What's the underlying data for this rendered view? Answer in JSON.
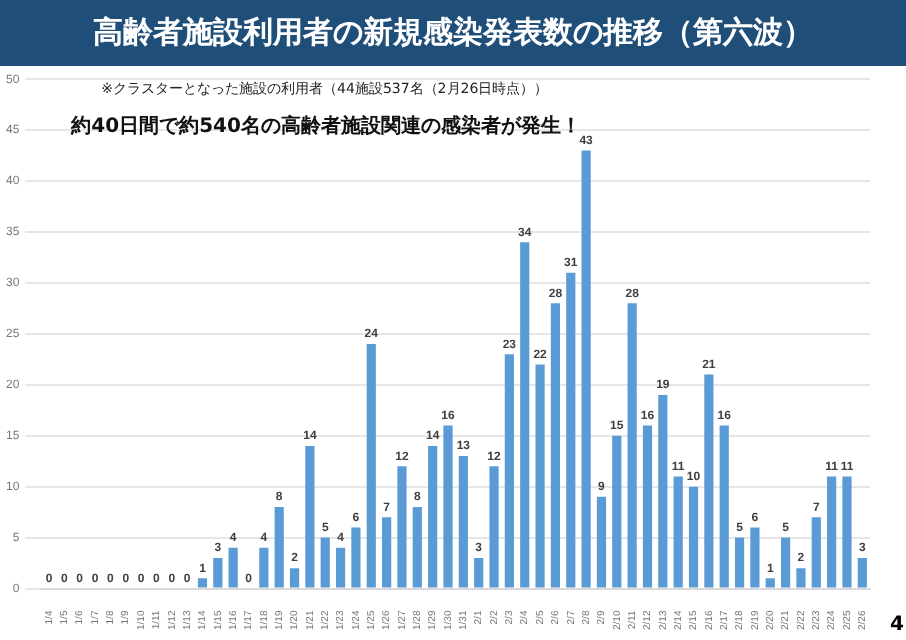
{
  "chart_data": {
    "type": "bar",
    "title": "高齢者施設利用者の新規感染発表数の推移（第六波）",
    "annotations": [
      "※クラスターとなった施設の利用者（44施設537名（2月26日時点））",
      "約40日間で約540名の高齢者施設関連の感染者が発生！",
      "4"
    ],
    "categories": [
      "1/4",
      "1/5",
      "1/6",
      "1/7",
      "1/8",
      "1/9",
      "1/10",
      "1/11",
      "1/12",
      "1/13",
      "1/14",
      "1/15",
      "1/16",
      "1/17",
      "1/18",
      "1/19",
      "1/20",
      "1/21",
      "1/22",
      "1/23",
      "1/24",
      "1/25",
      "1/26",
      "1/27",
      "1/28",
      "1/29",
      "1/30",
      "1/31",
      "2/1",
      "2/2",
      "2/3",
      "2/4",
      "2/5",
      "2/6",
      "2/7",
      "2/8",
      "2/9",
      "2/10",
      "2/11",
      "2/12",
      "2/13",
      "2/14",
      "2/15",
      "2/16",
      "2/17",
      "2/18",
      "2/19",
      "2/20",
      "2/21",
      "2/22",
      "2/23",
      "2/24",
      "2/25",
      "2/26"
    ],
    "values": [
      0,
      0,
      0,
      0,
      0,
      0,
      0,
      0,
      0,
      0,
      1,
      3,
      4,
      0,
      4,
      8,
      2,
      14,
      5,
      4,
      6,
      24,
      7,
      12,
      8,
      14,
      16,
      13,
      3,
      12,
      23,
      34,
      22,
      28,
      31,
      43,
      9,
      15,
      28,
      16,
      19,
      11,
      10,
      21,
      16,
      5,
      6,
      1,
      5,
      2,
      7,
      11,
      11,
      3
    ],
    "color": "#5b9bd5",
    "ylim": [
      0,
      50
    ],
    "yticks": [
      0,
      5,
      10,
      15,
      20,
      25,
      30,
      35,
      40,
      45,
      50
    ],
    "grid": "y",
    "data_labels": true,
    "legend": false
  }
}
